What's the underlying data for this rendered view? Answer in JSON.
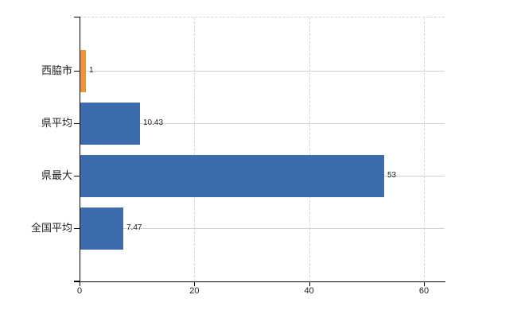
{
  "chart_data": {
    "type": "bar",
    "orientation": "horizontal",
    "title": "",
    "xlabel": "",
    "ylabel": "",
    "legend_position": "none",
    "categories": [
      "西脇市",
      "県平均",
      "県最大",
      "全国平均"
    ],
    "values": [
      1,
      10.43,
      53,
      7.47
    ],
    "data_labels": [
      "1",
      "10.43",
      "53",
      "7.47"
    ],
    "bar_colors": [
      "#ee9434",
      "#3c6cad",
      "#3c6cad",
      "#3c6cad"
    ],
    "x_ticks": [
      "0",
      "20",
      "40",
      "60"
    ],
    "x_tick_values": [
      0,
      20,
      40,
      60
    ],
    "xlim": [
      0,
      63.6
    ],
    "grid": {
      "vertical_gridlines": "dashed",
      "horizontal_row_lines": "solid",
      "top_border": "dashed",
      "gridline_color": "#d6d6d6",
      "row_line_color": "#ccd4cc"
    },
    "colors": {
      "bar_blue": "#3c6cad",
      "bar_orange": "#ee9434",
      "axis": "#000000",
      "text": "#1f1f1f",
      "background": "#ffffff"
    }
  }
}
